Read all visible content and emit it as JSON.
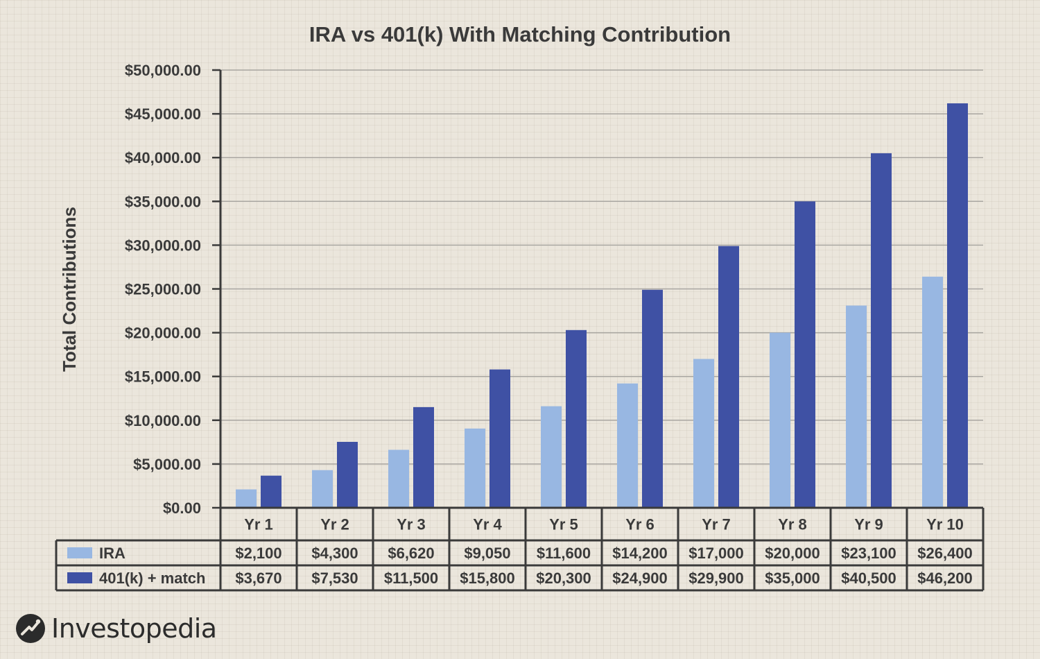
{
  "chart_data": {
    "type": "bar",
    "title": "IRA vs 401(k) With Matching Contribution",
    "xlabel": "",
    "ylabel": "Total Contributions",
    "ylim": [
      0,
      50000
    ],
    "yticks": [
      0,
      5000,
      10000,
      15000,
      20000,
      25000,
      30000,
      35000,
      40000,
      45000,
      50000
    ],
    "ytick_labels": [
      "$0.00",
      "$5,000.00",
      "$10,000.00",
      "$15,000.00",
      "$20,000.00",
      "$25,000.00",
      "$30,000.00",
      "$35,000.00",
      "$40,000.00",
      "$45,000.00",
      "$50,000.00"
    ],
    "grid": true,
    "legend": "data-table",
    "categories": [
      "Yr 1",
      "Yr 2",
      "Yr 3",
      "Yr 4",
      "Yr 5",
      "Yr 6",
      "Yr 7",
      "Yr 8",
      "Yr 9",
      "Yr 10"
    ],
    "series": [
      {
        "name": "IRA",
        "color": "#98b7e2",
        "values": [
          2100,
          4300,
          6620,
          9050,
          11600,
          14200,
          17000,
          20000,
          23100,
          26400
        ],
        "labels": [
          "$2,100",
          "$4,300",
          "$6,620",
          "$9,050",
          "$11,600",
          "$14,200",
          "$17,000",
          "$20,000",
          "$23,100",
          "$26,400"
        ]
      },
      {
        "name": "401(k) + match",
        "color": "#3f51a4",
        "values": [
          3670,
          7530,
          11500,
          15800,
          20300,
          24900,
          29900,
          35000,
          40500,
          46200
        ],
        "labels": [
          "$3,670",
          "$7,530",
          "$11,500",
          "$15,800",
          "$20,300",
          "$24,900",
          "$29,900",
          "$35,000",
          "$40,500",
          "$46,200"
        ]
      }
    ]
  },
  "brand": {
    "name": "Investopedia",
    "logo_icon": "investopedia-logo-icon"
  },
  "colors": {
    "axis": "#3a3a3a",
    "grid": "#a9a6a1",
    "text": "#3a3a3a"
  }
}
